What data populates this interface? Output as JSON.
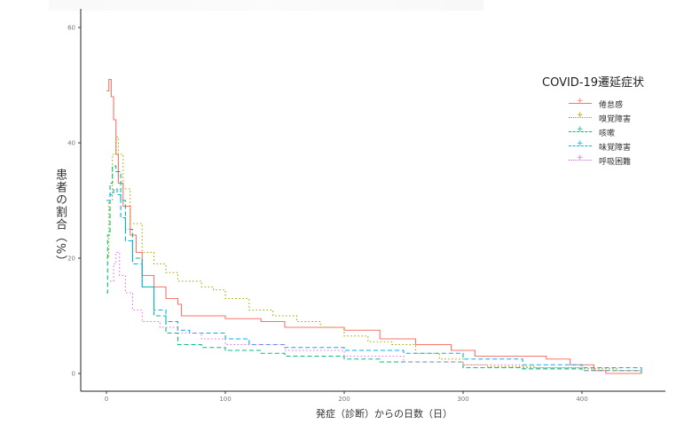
{
  "chart_data": {
    "type": "line",
    "title": "",
    "xlabel": "発症（診断）からの日数（日）",
    "ylabel": "患者の割合（%）",
    "xlim": [
      -20,
      460
    ],
    "ylim": [
      -3,
      63
    ],
    "x_ticks": [
      0,
      100,
      200,
      300,
      400
    ],
    "y_ticks": [
      0,
      20,
      40,
      60
    ],
    "grid": false,
    "legend": {
      "title": "COVID-19遷延症状",
      "position": "right"
    },
    "series": [
      {
        "name": "倦怠感",
        "color": "#F8766D",
        "dash": "solid",
        "points": [
          [
            0,
            49
          ],
          [
            2,
            51
          ],
          [
            4,
            48
          ],
          [
            6,
            44
          ],
          [
            8,
            38
          ],
          [
            10,
            33
          ],
          [
            14,
            29
          ],
          [
            20,
            24
          ],
          [
            25,
            21
          ],
          [
            30,
            17
          ],
          [
            40,
            15
          ],
          [
            50,
            13
          ],
          [
            60,
            12
          ],
          [
            63,
            10
          ],
          [
            80,
            10
          ],
          [
            100,
            9.5
          ],
          [
            130,
            9
          ],
          [
            150,
            8
          ],
          [
            180,
            8
          ],
          [
            200,
            7.5
          ],
          [
            230,
            6
          ],
          [
            260,
            5
          ],
          [
            290,
            4
          ],
          [
            310,
            3
          ],
          [
            330,
            3
          ],
          [
            360,
            3
          ],
          [
            370,
            2.5
          ],
          [
            390,
            1.5
          ],
          [
            410,
            0.5
          ],
          [
            420,
            0
          ],
          [
            450,
            0
          ]
        ]
      },
      {
        "name": "嗅覚障害",
        "color": "#A3A500",
        "dash": "dotted",
        "points": [
          [
            0,
            20
          ],
          [
            2,
            30
          ],
          [
            5,
            38
          ],
          [
            8,
            41
          ],
          [
            10,
            38
          ],
          [
            14,
            32
          ],
          [
            20,
            26
          ],
          [
            30,
            21
          ],
          [
            40,
            19
          ],
          [
            50,
            17.5
          ],
          [
            60,
            16
          ],
          [
            80,
            15
          ],
          [
            90,
            14.5
          ],
          [
            100,
            13
          ],
          [
            120,
            11
          ],
          [
            140,
            10
          ],
          [
            160,
            9
          ],
          [
            180,
            8
          ],
          [
            200,
            6.5
          ],
          [
            220,
            5.5
          ],
          [
            240,
            5
          ],
          [
            260,
            3.5
          ],
          [
            280,
            2.5
          ],
          [
            300,
            1.5
          ],
          [
            320,
            1.2
          ],
          [
            360,
            1
          ],
          [
            400,
            0.8
          ],
          [
            430,
            0.5
          ],
          [
            450,
            0
          ]
        ]
      },
      {
        "name": "咳嗽",
        "color": "#00BF7D",
        "dash": "dashed",
        "points": [
          [
            0,
            14
          ],
          [
            1,
            24
          ],
          [
            3,
            33
          ],
          [
            5,
            36
          ],
          [
            8,
            35
          ],
          [
            12,
            30
          ],
          [
            16,
            25
          ],
          [
            22,
            20
          ],
          [
            30,
            15
          ],
          [
            40,
            10
          ],
          [
            50,
            7
          ],
          [
            60,
            5
          ],
          [
            80,
            4.5
          ],
          [
            100,
            4
          ],
          [
            130,
            3.5
          ],
          [
            150,
            3
          ],
          [
            200,
            2.5
          ],
          [
            230,
            2
          ],
          [
            300,
            1
          ],
          [
            350,
            0.8
          ],
          [
            400,
            0.5
          ],
          [
            450,
            0
          ]
        ]
      },
      {
        "name": "味覚障害",
        "color": "#00B0F6",
        "dash": "dashed",
        "points": [
          [
            0,
            30
          ],
          [
            3,
            31
          ],
          [
            6,
            32
          ],
          [
            9,
            31
          ],
          [
            12,
            27
          ],
          [
            16,
            23
          ],
          [
            22,
            19
          ],
          [
            30,
            15
          ],
          [
            40,
            11
          ],
          [
            50,
            9
          ],
          [
            60,
            7.5
          ],
          [
            70,
            7
          ],
          [
            80,
            7
          ],
          [
            100,
            6
          ],
          [
            120,
            5
          ],
          [
            150,
            4.5
          ],
          [
            200,
            4
          ],
          [
            250,
            3.5
          ],
          [
            300,
            2.5
          ],
          [
            350,
            1.5
          ],
          [
            400,
            1
          ],
          [
            450,
            0
          ]
        ]
      },
      {
        "name": "呼吸困難",
        "color": "#E76BF3",
        "dash": "dotted",
        "points": [
          [
            3,
            16
          ],
          [
            6,
            19
          ],
          [
            8,
            21
          ],
          [
            11,
            17
          ],
          [
            16,
            14
          ],
          [
            22,
            11
          ],
          [
            30,
            9
          ],
          [
            45,
            8
          ],
          [
            60,
            7
          ],
          [
            80,
            6
          ],
          [
            100,
            5
          ],
          [
            150,
            4
          ],
          [
            200,
            3
          ],
          [
            250,
            2
          ],
          [
            300,
            1.5
          ],
          [
            350,
            1
          ],
          [
            400,
            0.5
          ],
          [
            450,
            0
          ]
        ]
      }
    ]
  }
}
